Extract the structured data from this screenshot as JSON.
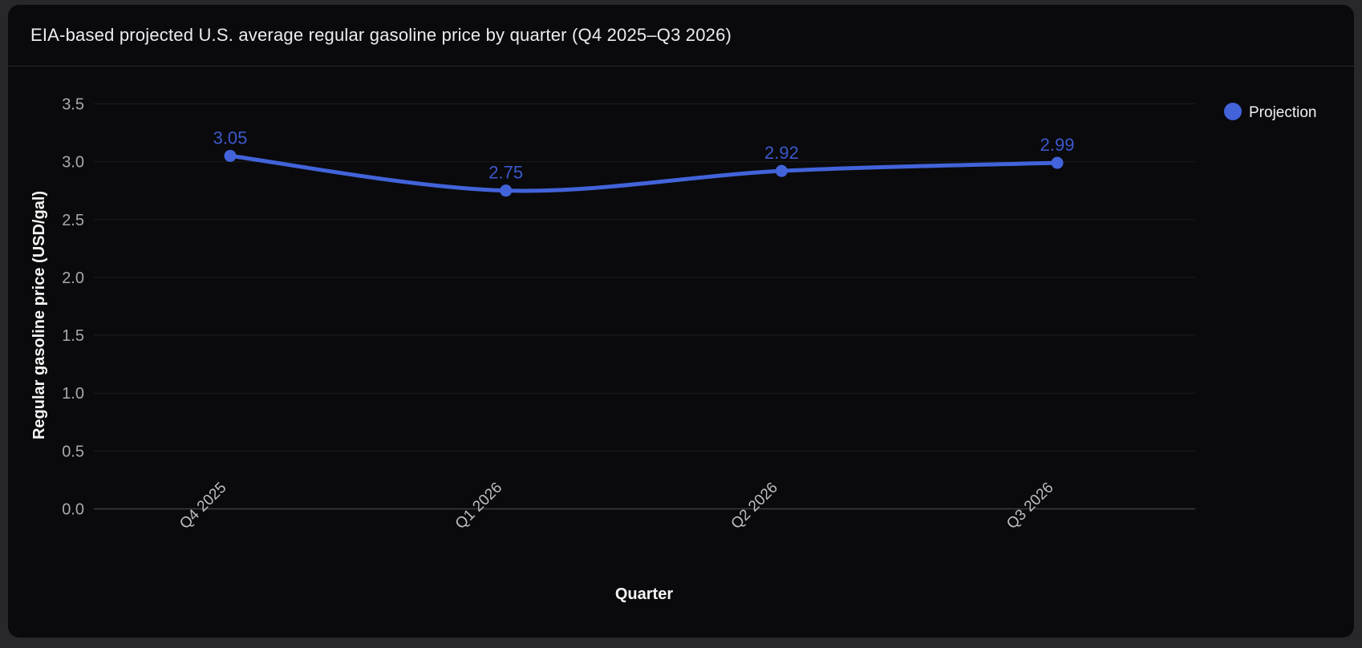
{
  "window": {
    "outer_background": "#28282b",
    "card_background": "#0a0a0c"
  },
  "header": {
    "title": "EIA-based projected U.S. average regular gasoline price by quarter (Q4 2025–Q3 2026)"
  },
  "chart_data": {
    "type": "line",
    "title": "EIA-based projected U.S. average regular gasoline price by quarter (Q4 2025–Q3 2026)",
    "categories": [
      "Q4 2025",
      "Q1 2026",
      "Q2 2026",
      "Q3 2026"
    ],
    "series": [
      {
        "name": "Projection",
        "values": [
          3.05,
          2.75,
          2.92,
          2.99
        ],
        "color": "#4263da",
        "label_color": "#3c58cb"
      }
    ],
    "xlabel": "Quarter",
    "ylabel": "Regular gasoline price (USD/gal)",
    "ylim": [
      0,
      3.5
    ],
    "ytick_step": 0.5,
    "ytick_labels": [
      "0.0",
      "0.5",
      "1.0",
      "1.5",
      "2.0",
      "2.5",
      "3.0",
      "3.5"
    ],
    "data_labels": [
      "3.05",
      "2.75",
      "2.92",
      "2.99"
    ],
    "grid": true,
    "legend_position": "top-right",
    "x_tick_rotation": -45
  },
  "styles": {
    "grid_color": "#1d1d21",
    "zero_line_color": "#3b3b41",
    "y_tick_color": "#a9a9ad",
    "x_tick_color": "#bebec2",
    "axis_title_color": "#f4f4f5",
    "title_color": "#ececee",
    "legend_text_color": "#f0f0f2",
    "divider_color": "#26262b"
  }
}
